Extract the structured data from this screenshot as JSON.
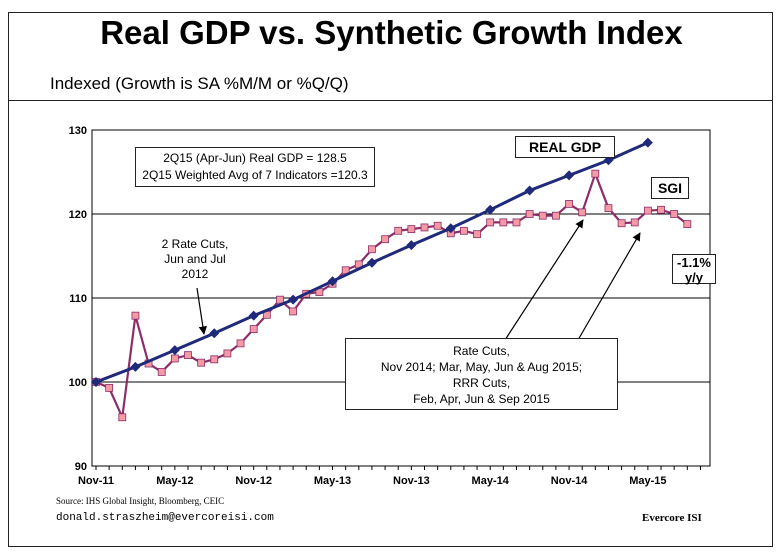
{
  "header": {
    "title": "Real GDP vs. Synthetic Growth Index",
    "subtitle": "Indexed (Growth is SA %M/M or %Q/Q)"
  },
  "footer": {
    "source": "Source: IHS Global Insight, Bloomberg, CEIC",
    "email": "donald.straszheim@evercoreisi.com",
    "brand": "Evercore ISI"
  },
  "annotations": {
    "stats_line1": "2Q15 (Apr-Jun) Real GDP = 128.5",
    "stats_line2": "2Q15 Weighted Avg of 7 Indicators =120.3",
    "rate_cuts_2012_line1": "2 Rate Cuts,",
    "rate_cuts_2012_line2": "Jun and Jul",
    "rate_cuts_2012_line3": "2012",
    "rate_cuts_2015_line1": "Rate Cuts,",
    "rate_cuts_2015_line2": "Nov 2014; Mar, May, Jun & Aug 2015;",
    "rate_cuts_2015_line3": "RRR Cuts,",
    "rate_cuts_2015_line4": "Feb, Apr, Jun & Sep 2015",
    "yy_line1": "-1.1%",
    "yy_line2": "y/y"
  },
  "chart_data": {
    "type": "line",
    "title": "Real GDP vs. Synthetic Growth Index",
    "subtitle": "Indexed (Growth is SA %M/M or %Q/Q)",
    "xlabel": "",
    "ylabel": "",
    "ylim": [
      90,
      130
    ],
    "y_ticks": [
      90,
      100,
      110,
      120,
      130
    ],
    "x_tick_labels": [
      "Nov-11",
      "May-12",
      "Nov-12",
      "May-13",
      "Nov-13",
      "May-14",
      "Nov-14",
      "May-15"
    ],
    "grid": "horizontal",
    "colors": {
      "real_gdp": "#1f2a7a",
      "sgi_line": "#8b2d6b",
      "sgi_marker": "#f39aa5",
      "grid": "#000000"
    },
    "series": [
      {
        "name": "REAL GDP",
        "x": [
          "Nov-11",
          "Feb-12",
          "May-12",
          "Aug-12",
          "Nov-12",
          "Feb-13",
          "May-13",
          "Aug-13",
          "Nov-13",
          "Feb-14",
          "May-14",
          "Aug-14",
          "Nov-14",
          "Feb-15",
          "May-15"
        ],
        "values": [
          100.0,
          101.8,
          103.8,
          105.8,
          107.9,
          109.8,
          112.0,
          114.2,
          116.3,
          118.3,
          120.5,
          122.8,
          124.6,
          126.4,
          128.5
        ]
      },
      {
        "name": "SGI",
        "x": [
          "Nov-11",
          "Dec-11",
          "Jan-12",
          "Feb-12",
          "Mar-12",
          "Apr-12",
          "May-12",
          "Jun-12",
          "Jul-12",
          "Aug-12",
          "Sep-12",
          "Oct-12",
          "Nov-12",
          "Dec-12",
          "Jan-13",
          "Feb-13",
          "Mar-13",
          "Apr-13",
          "May-13",
          "Jun-13",
          "Jul-13",
          "Aug-13",
          "Sep-13",
          "Oct-13",
          "Nov-13",
          "Dec-13",
          "Jan-14",
          "Feb-14",
          "Mar-14",
          "Apr-14",
          "May-14",
          "Jun-14",
          "Jul-14",
          "Aug-14",
          "Sep-14",
          "Oct-14",
          "Nov-14",
          "Dec-14",
          "Jan-15",
          "Feb-15",
          "Mar-15",
          "Apr-15",
          "May-15",
          "Jun-15",
          "Jul-15",
          "Aug-15"
        ],
        "values": [
          100.0,
          99.3,
          95.8,
          107.9,
          102.2,
          101.2,
          102.8,
          103.2,
          102.3,
          102.7,
          103.4,
          104.6,
          106.3,
          108.0,
          109.8,
          108.4,
          110.5,
          110.7,
          111.7,
          113.3,
          114.0,
          115.8,
          117.0,
          118.0,
          118.2,
          118.4,
          118.6,
          117.7,
          118.0,
          117.6,
          119.0,
          119.0,
          119.0,
          120.0,
          119.8,
          119.8,
          121.2,
          120.2,
          124.8,
          120.7,
          118.9,
          119.0,
          120.4,
          120.5,
          120.0,
          118.8
        ]
      }
    ]
  }
}
